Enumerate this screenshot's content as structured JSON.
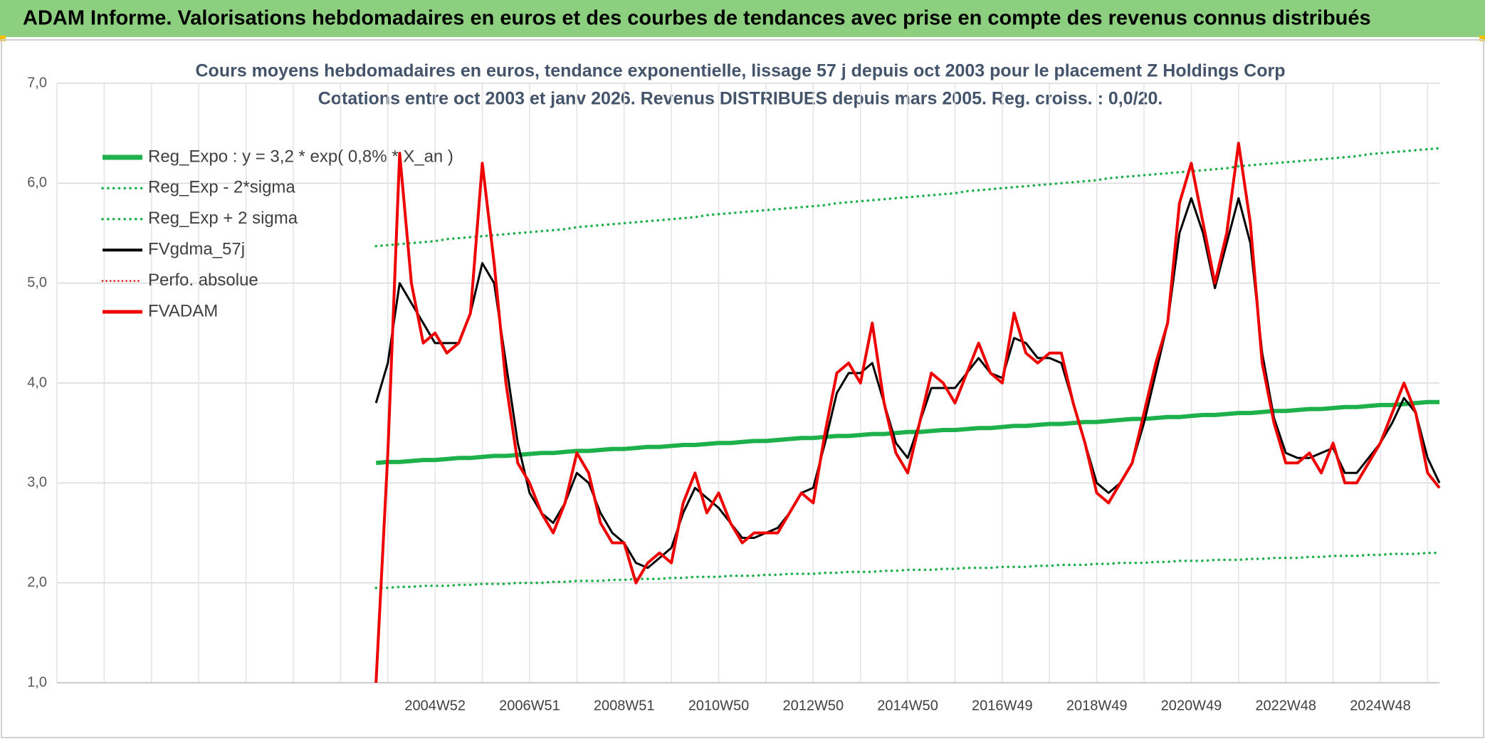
{
  "header": {
    "title": "ADAM Informe. Valorisations hebdomadaires en euros et des courbes de tendances avec prise en compte des revenus connus distribués"
  },
  "chart_data": {
    "type": "line",
    "title": "Cours moyens hebdomadaires en euros, tendance exponentielle, lissage 57 j depuis oct 2003 pour le placement Z Holdings Corp",
    "subtitle": "Cotations entre oct 2003 et janv 2026. Revenus DISTRIBUES depuis mars 2005. Reg. croiss. : 0,0/20.",
    "categories": [
      null,
      null,
      null,
      null,
      null,
      null,
      null,
      null,
      null,
      null,
      null,
      null,
      null,
      null,
      null,
      null,
      null,
      null,
      null,
      null,
      null,
      null,
      null,
      null,
      null,
      null,
      null,
      null,
      null,
      null,
      null,
      null,
      "2004W52",
      null,
      null,
      null,
      null,
      null,
      null,
      null,
      "2006W51",
      null,
      null,
      null,
      null,
      null,
      null,
      null,
      "2008W51",
      null,
      null,
      null,
      null,
      null,
      null,
      null,
      "2010W50",
      null,
      null,
      null,
      null,
      null,
      null,
      null,
      "2012W50",
      null,
      null,
      null,
      null,
      null,
      null,
      null,
      "2014W50",
      null,
      null,
      null,
      null,
      null,
      null,
      null,
      "2016W49",
      null,
      null,
      null,
      null,
      null,
      null,
      null,
      "2018W49",
      null,
      null,
      null,
      null,
      null,
      null,
      null,
      "2020W49",
      null,
      null,
      null,
      null,
      null,
      null,
      null,
      "2022W48",
      null,
      null,
      null,
      null,
      null,
      null,
      null,
      "2024W48",
      null,
      null,
      null,
      null,
      null
    ],
    "ylim": [
      1,
      7
    ],
    "yticks": [
      {
        "value": 1,
        "label": "1,0"
      },
      {
        "value": 2,
        "label": "2,0"
      },
      {
        "value": 3,
        "label": "3,0"
      },
      {
        "value": 4,
        "label": "4,0"
      },
      {
        "value": 5,
        "label": "5,0"
      },
      {
        "value": 6,
        "label": "6,0"
      },
      {
        "value": 7,
        "label": "7,0"
      }
    ],
    "grid": true,
    "legend": "top-left",
    "series": [
      {
        "name": "Reg_Expo : y = 3,2 * exp( 0,8% * X_an )",
        "color": "#1db04b",
        "style": "solid",
        "width": 6,
        "values": [
          null,
          null,
          null,
          null,
          null,
          null,
          null,
          null,
          null,
          null,
          null,
          null,
          null,
          null,
          null,
          null,
          null,
          null,
          null,
          null,
          null,
          null,
          null,
          null,
          null,
          null,
          null,
          3.2,
          3.21,
          3.21,
          3.22,
          3.23,
          3.23,
          3.24,
          3.25,
          3.25,
          3.26,
          3.27,
          3.27,
          3.28,
          3.29,
          3.3,
          3.3,
          3.31,
          3.32,
          3.32,
          3.33,
          3.34,
          3.34,
          3.35,
          3.36,
          3.36,
          3.37,
          3.38,
          3.38,
          3.39,
          3.4,
          3.4,
          3.41,
          3.42,
          3.42,
          3.43,
          3.44,
          3.45,
          3.45,
          3.46,
          3.47,
          3.47,
          3.48,
          3.49,
          3.49,
          3.5,
          3.51,
          3.51,
          3.52,
          3.53,
          3.53,
          3.54,
          3.55,
          3.55,
          3.56,
          3.57,
          3.57,
          3.58,
          3.59,
          3.59,
          3.6,
          3.61,
          3.61,
          3.62,
          3.63,
          3.64,
          3.64,
          3.65,
          3.66,
          3.66,
          3.67,
          3.68,
          3.68,
          3.69,
          3.7,
          3.7,
          3.71,
          3.72,
          3.72,
          3.73,
          3.74,
          3.74,
          3.75,
          3.76,
          3.76,
          3.77,
          3.78,
          3.78,
          3.79,
          3.8,
          3.81,
          3.81
        ]
      },
      {
        "name": "Reg_Exp - 2*sigma",
        "color": "#1db04b",
        "style": "dotted",
        "width": 3.5,
        "values": [
          null,
          null,
          null,
          null,
          null,
          null,
          null,
          null,
          null,
          null,
          null,
          null,
          null,
          null,
          null,
          null,
          null,
          null,
          null,
          null,
          null,
          null,
          null,
          null,
          null,
          null,
          null,
          1.95,
          1.95,
          1.96,
          1.96,
          1.97,
          1.97,
          1.97,
          1.98,
          1.98,
          1.99,
          1.99,
          1.99,
          2.0,
          2.0,
          2.0,
          2.01,
          2.01,
          2.02,
          2.02,
          2.02,
          2.03,
          2.03,
          2.04,
          2.04,
          2.04,
          2.05,
          2.05,
          2.06,
          2.06,
          2.06,
          2.07,
          2.07,
          2.07,
          2.08,
          2.08,
          2.09,
          2.09,
          2.09,
          2.1,
          2.1,
          2.11,
          2.11,
          2.11,
          2.12,
          2.12,
          2.13,
          2.13,
          2.13,
          2.14,
          2.14,
          2.15,
          2.15,
          2.15,
          2.16,
          2.16,
          2.16,
          2.17,
          2.17,
          2.18,
          2.18,
          2.18,
          2.19,
          2.19,
          2.2,
          2.2,
          2.2,
          2.21,
          2.21,
          2.22,
          2.22,
          2.22,
          2.23,
          2.23,
          2.23,
          2.24,
          2.24,
          2.25,
          2.25,
          2.25,
          2.26,
          2.26,
          2.27,
          2.27,
          2.27,
          2.28,
          2.28,
          2.29,
          2.29,
          2.29,
          2.3,
          2.3
        ]
      },
      {
        "name": "Reg_Exp + 2 sigma",
        "color": "#1db04b",
        "style": "dotted",
        "width": 3.5,
        "values": [
          null,
          null,
          null,
          null,
          null,
          null,
          null,
          null,
          null,
          null,
          null,
          null,
          null,
          null,
          null,
          null,
          null,
          null,
          null,
          null,
          null,
          null,
          null,
          null,
          null,
          null,
          null,
          5.37,
          5.38,
          5.39,
          5.4,
          5.41,
          5.42,
          5.44,
          5.45,
          5.46,
          5.47,
          5.48,
          5.49,
          5.5,
          5.51,
          5.52,
          5.53,
          5.54,
          5.56,
          5.57,
          5.58,
          5.59,
          5.6,
          5.61,
          5.62,
          5.63,
          5.64,
          5.65,
          5.66,
          5.68,
          5.69,
          5.7,
          5.71,
          5.72,
          5.73,
          5.74,
          5.75,
          5.76,
          5.77,
          5.78,
          5.8,
          5.81,
          5.82,
          5.83,
          5.84,
          5.85,
          5.86,
          5.87,
          5.88,
          5.89,
          5.9,
          5.92,
          5.93,
          5.94,
          5.95,
          5.96,
          5.97,
          5.98,
          5.99,
          6.0,
          6.01,
          6.02,
          6.03,
          6.05,
          6.06,
          6.07,
          6.08,
          6.09,
          6.1,
          6.11,
          6.12,
          6.13,
          6.14,
          6.15,
          6.17,
          6.18,
          6.19,
          6.2,
          6.21,
          6.22,
          6.23,
          6.24,
          6.25,
          6.26,
          6.27,
          6.29,
          6.3,
          6.31,
          6.32,
          6.33,
          6.34,
          6.35
        ]
      },
      {
        "name": "FVgdma_57j",
        "color": "#000000",
        "style": "solid",
        "width": 3,
        "values": [
          null,
          null,
          null,
          null,
          null,
          null,
          null,
          null,
          null,
          null,
          null,
          null,
          null,
          null,
          null,
          null,
          null,
          null,
          null,
          null,
          null,
          null,
          null,
          null,
          null,
          null,
          null,
          3.8,
          4.2,
          5.0,
          4.8,
          4.6,
          4.4,
          4.4,
          4.4,
          4.7,
          5.2,
          5.0,
          4.2,
          3.4,
          2.9,
          2.7,
          2.6,
          2.8,
          3.1,
          3.0,
          2.7,
          2.5,
          2.4,
          2.2,
          2.15,
          2.25,
          2.35,
          2.7,
          2.95,
          2.85,
          2.75,
          2.6,
          2.45,
          2.45,
          2.5,
          2.55,
          2.7,
          2.9,
          2.95,
          3.4,
          3.9,
          4.1,
          4.1,
          4.2,
          3.8,
          3.4,
          3.25,
          3.6,
          3.95,
          3.95,
          3.95,
          4.1,
          4.25,
          4.1,
          4.05,
          4.45,
          4.4,
          4.25,
          4.25,
          4.2,
          3.8,
          3.4,
          3.0,
          2.9,
          3.0,
          3.2,
          3.6,
          4.1,
          4.6,
          5.5,
          5.85,
          5.5,
          4.95,
          5.4,
          5.85,
          5.4,
          4.3,
          3.65,
          3.3,
          3.25,
          3.25,
          3.3,
          3.35,
          3.1,
          3.1,
          3.25,
          3.4,
          3.6,
          3.85,
          3.7,
          3.25,
          3.0
        ]
      },
      {
        "name": "Perfo. absolue",
        "color": "#e00000",
        "style": "dotted",
        "width": 2.5,
        "values": [
          null,
          null,
          null,
          null,
          null,
          null,
          null,
          null,
          null,
          null,
          null,
          null,
          null,
          null,
          null,
          null,
          null,
          null,
          null,
          null,
          null,
          null,
          null,
          null,
          null,
          null,
          null,
          null,
          null,
          null,
          null,
          null,
          null,
          null,
          null,
          null,
          null,
          null,
          null,
          null,
          null,
          null,
          null,
          null,
          null,
          null,
          null,
          null,
          null,
          null,
          null,
          null,
          null,
          null,
          null,
          null,
          null,
          null,
          null,
          null,
          null,
          null,
          null,
          null,
          null,
          null,
          null,
          null,
          null,
          null,
          null,
          null,
          null,
          null,
          null,
          null,
          null,
          null,
          null,
          null,
          null,
          null,
          null,
          null,
          null,
          null,
          null,
          null,
          null,
          null,
          null,
          null,
          null,
          null,
          null,
          null,
          null,
          null,
          null,
          null,
          null,
          null,
          null,
          null,
          null,
          null,
          null,
          null,
          null,
          null,
          null,
          null,
          null,
          null,
          null,
          null,
          null,
          null
        ]
      },
      {
        "name": "FVADAM",
        "color": "#ee0000",
        "style": "solid",
        "width": 4,
        "values": [
          null,
          null,
          null,
          null,
          null,
          null,
          null,
          null,
          null,
          null,
          null,
          null,
          null,
          null,
          null,
          null,
          null,
          null,
          null,
          null,
          null,
          null,
          null,
          null,
          null,
          null,
          null,
          1.0,
          3.3,
          6.3,
          5.0,
          4.4,
          4.5,
          4.3,
          4.4,
          4.7,
          6.2,
          5.2,
          4.0,
          3.2,
          3.0,
          2.7,
          2.5,
          2.8,
          3.3,
          3.1,
          2.6,
          2.4,
          2.4,
          2.0,
          2.2,
          2.3,
          2.2,
          2.8,
          3.1,
          2.7,
          2.9,
          2.6,
          2.4,
          2.5,
          2.5,
          2.5,
          2.7,
          2.9,
          2.8,
          3.5,
          4.1,
          4.2,
          4.0,
          4.6,
          3.8,
          3.3,
          3.1,
          3.6,
          4.1,
          4.0,
          3.8,
          4.1,
          4.4,
          4.1,
          4.0,
          4.7,
          4.3,
          4.2,
          4.3,
          4.3,
          3.8,
          3.4,
          2.9,
          2.8,
          3.0,
          3.2,
          3.7,
          4.2,
          4.6,
          5.8,
          6.2,
          5.6,
          5.0,
          5.5,
          6.4,
          5.6,
          4.2,
          3.6,
          3.2,
          3.2,
          3.3,
          3.1,
          3.4,
          3.0,
          3.0,
          3.2,
          3.4,
          3.7,
          4.0,
          3.7,
          3.1,
          2.95
        ]
      }
    ]
  }
}
